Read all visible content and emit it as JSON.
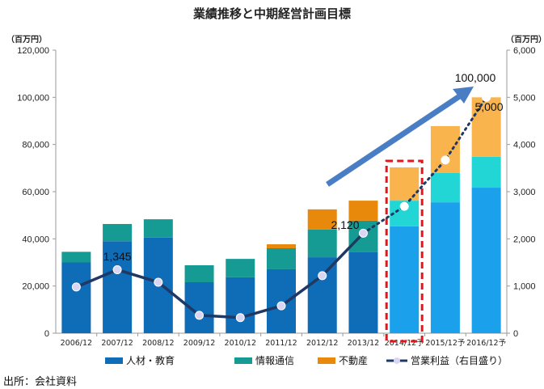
{
  "chart_data": {
    "type": "bar",
    "title": "業績推移と中期経営計画目標",
    "left_unit": "（百万円）",
    "right_unit": "（百万円）",
    "categories": [
      "2006/12",
      "2007/12",
      "2008/12",
      "2009/12",
      "2010/12",
      "2011/12",
      "2012/12",
      "2013/12",
      "2014/12予",
      "2015/12予",
      "2016/12予"
    ],
    "forecast_from_index": 8,
    "stacked": true,
    "ylim": [
      0,
      120000
    ],
    "yticks": [
      "0",
      "20,000",
      "40,000",
      "60,000",
      "80,000",
      "100,000",
      "120,000"
    ],
    "ylim_right": [
      0,
      6000
    ],
    "yticks_right": [
      "0",
      "1,000",
      "2,000",
      "3,000",
      "4,000",
      "5,000",
      "6,000"
    ],
    "series": [
      {
        "name": "人材・教育",
        "values": [
          30000,
          39000,
          40500,
          21600,
          23700,
          27100,
          32200,
          34300,
          45300,
          55500,
          61700
        ],
        "color": "#0f6cb6",
        "forecast_color": "#1ba1ec"
      },
      {
        "name": "情報通信",
        "values": [
          4500,
          7300,
          7800,
          7200,
          7800,
          8900,
          11700,
          13400,
          10900,
          12400,
          13100
        ],
        "color": "#169b94",
        "forecast_color": "#22d6d6"
      },
      {
        "name": "不動産",
        "values": [
          0,
          0,
          0,
          0,
          0,
          1700,
          8600,
          8500,
          14100,
          19900,
          25200
        ],
        "color": "#e8890c",
        "forecast_color": "#f9b44e"
      }
    ],
    "line": {
      "name": "営業利益（右目盛り）",
      "axis": "right",
      "values": [
        980,
        1345,
        1080,
        380,
        330,
        580,
        1220,
        2120,
        2690,
        3670,
        5000
      ],
      "color": "#1f3864",
      "marker_color": "#d9d6f5"
    },
    "annotations": [
      "1,345",
      "2,120",
      "5,000",
      "100,000"
    ],
    "highlight_category": "2014/12予",
    "highlight_color": "#e8141c",
    "arrow_color": "#4a7ec4"
  },
  "source": "出所：会社資料"
}
